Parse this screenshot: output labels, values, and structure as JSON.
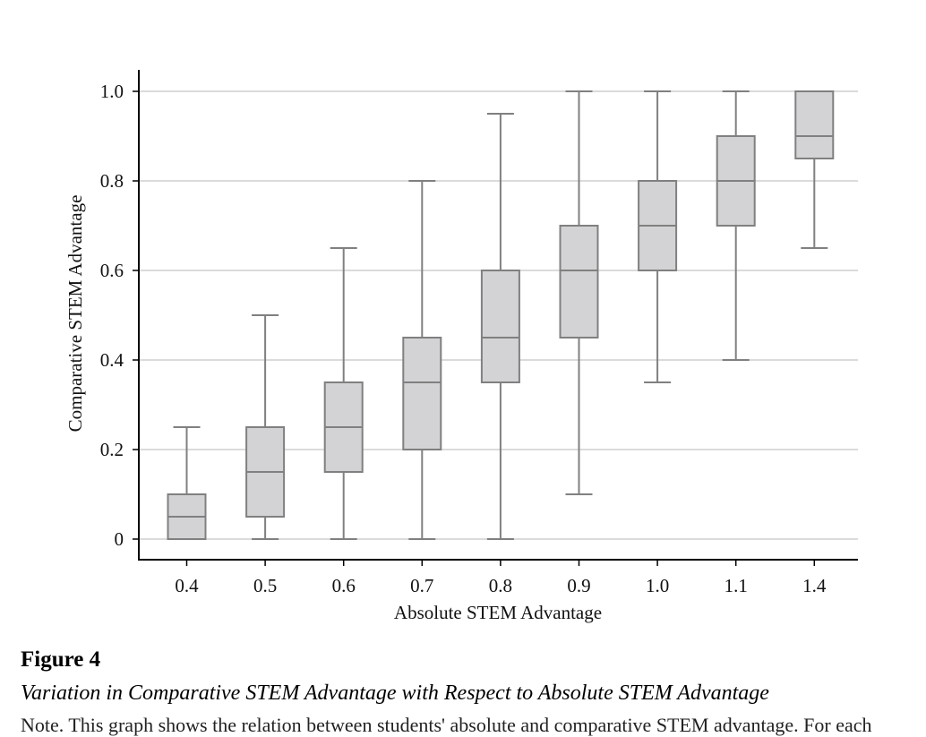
{
  "figure": {
    "heading": "Figure 4",
    "title": "Variation in Comparative STEM Advantage with Respect to Absolute STEM Advantage",
    "note": "Note. This graph shows the relation between students' absolute and comparative STEM advantage. For each"
  },
  "colors": {
    "box_fill": "#d3d3d5",
    "box_stroke": "#808080",
    "grid": "#cfcfcf",
    "axis": "#000000"
  },
  "chart_data": {
    "type": "box",
    "title": "",
    "xlabel": "Absolute STEM Advantage",
    "ylabel": "Comparative STEM Advantage",
    "ylim": [
      0,
      1.0
    ],
    "yticks": [
      0,
      0.2,
      0.4,
      0.6,
      0.8,
      1.0
    ],
    "ytick_labels": [
      "0",
      "0.2",
      "0.4",
      "0.6",
      "0.8",
      "1.0"
    ],
    "grid": true,
    "categories": [
      "0.4",
      "0.5",
      "0.6",
      "0.7",
      "0.8",
      "0.9",
      "1.0",
      "1.1",
      "1.4"
    ],
    "boxes": [
      {
        "category": "0.4",
        "min": 0.0,
        "q1": 0.0,
        "median": 0.05,
        "q3": 0.1,
        "max": 0.25
      },
      {
        "category": "0.5",
        "min": 0.0,
        "q1": 0.05,
        "median": 0.15,
        "q3": 0.25,
        "max": 0.5
      },
      {
        "category": "0.6",
        "min": 0.0,
        "q1": 0.15,
        "median": 0.25,
        "q3": 0.35,
        "max": 0.65
      },
      {
        "category": "0.7",
        "min": 0.0,
        "q1": 0.2,
        "median": 0.35,
        "q3": 0.45,
        "max": 0.8
      },
      {
        "category": "0.8",
        "min": 0.0,
        "q1": 0.35,
        "median": 0.45,
        "q3": 0.6,
        "max": 0.95
      },
      {
        "category": "0.9",
        "min": 0.1,
        "q1": 0.45,
        "median": 0.6,
        "q3": 0.7,
        "max": 1.0
      },
      {
        "category": "1.0",
        "min": 0.35,
        "q1": 0.6,
        "median": 0.7,
        "q3": 0.8,
        "max": 1.0
      },
      {
        "category": "1.1",
        "min": 0.4,
        "q1": 0.7,
        "median": 0.8,
        "q3": 0.9,
        "max": 1.0
      },
      {
        "category": "1.4",
        "min": 0.65,
        "q1": 0.85,
        "median": 0.9,
        "q3": 1.0,
        "max": 1.0
      }
    ]
  }
}
